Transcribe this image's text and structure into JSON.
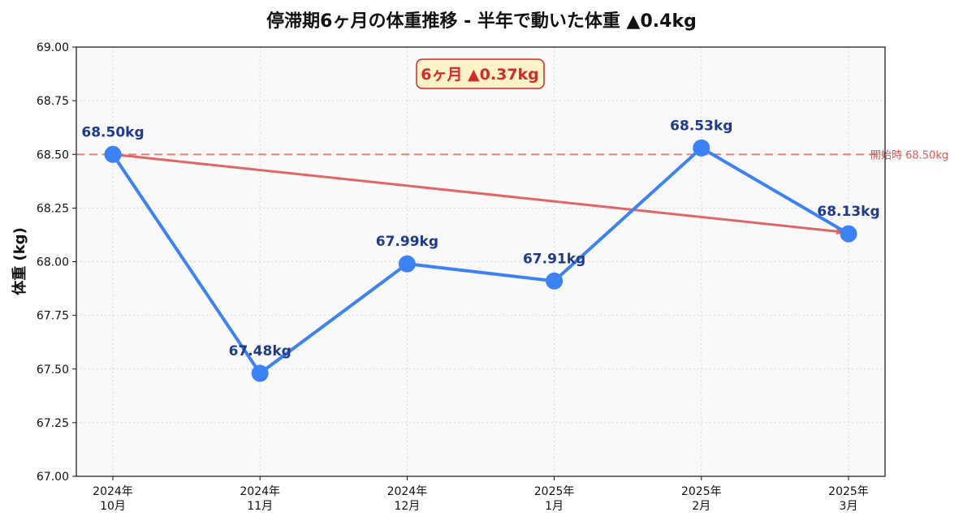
{
  "chart_data": {
    "type": "line",
    "title": "停滞期6ヶ月の体重推移 - 半年で動いた体重 ▲0.4kg",
    "xlabel": "",
    "ylabel": "体重 (kg)",
    "ylim": [
      67.0,
      69.0
    ],
    "yticks": [
      "67.00",
      "67.25",
      "67.50",
      "67.75",
      "68.00",
      "68.25",
      "68.50",
      "68.75",
      "69.00"
    ],
    "categories": [
      [
        "2024年",
        "10月"
      ],
      [
        "2024年",
        "11月"
      ],
      [
        "2024年",
        "12月"
      ],
      [
        "2025年",
        "1月"
      ],
      [
        "2025年",
        "2月"
      ],
      [
        "2025年",
        "3月"
      ]
    ],
    "series": [
      {
        "values": [
          68.5,
          67.48,
          67.99,
          67.91,
          68.53,
          68.13
        ],
        "labels": [
          "68.50kg",
          "67.48kg",
          "67.99kg",
          "67.91kg",
          "68.53kg",
          "68.13kg"
        ],
        "color": "#3b82f6"
      }
    ],
    "reference_line": {
      "value": 68.5,
      "label": "開始時 68.50kg",
      "color": "#f08080"
    },
    "trend_arrow": {
      "from_index": 0,
      "to_index": 5,
      "color": "#e06666"
    },
    "annotation": {
      "text": "6ヶ月 ▲0.37kg",
      "color": "#d62828",
      "background": "#fdf3c7"
    },
    "grid": true,
    "background": "#f9f9f9"
  }
}
